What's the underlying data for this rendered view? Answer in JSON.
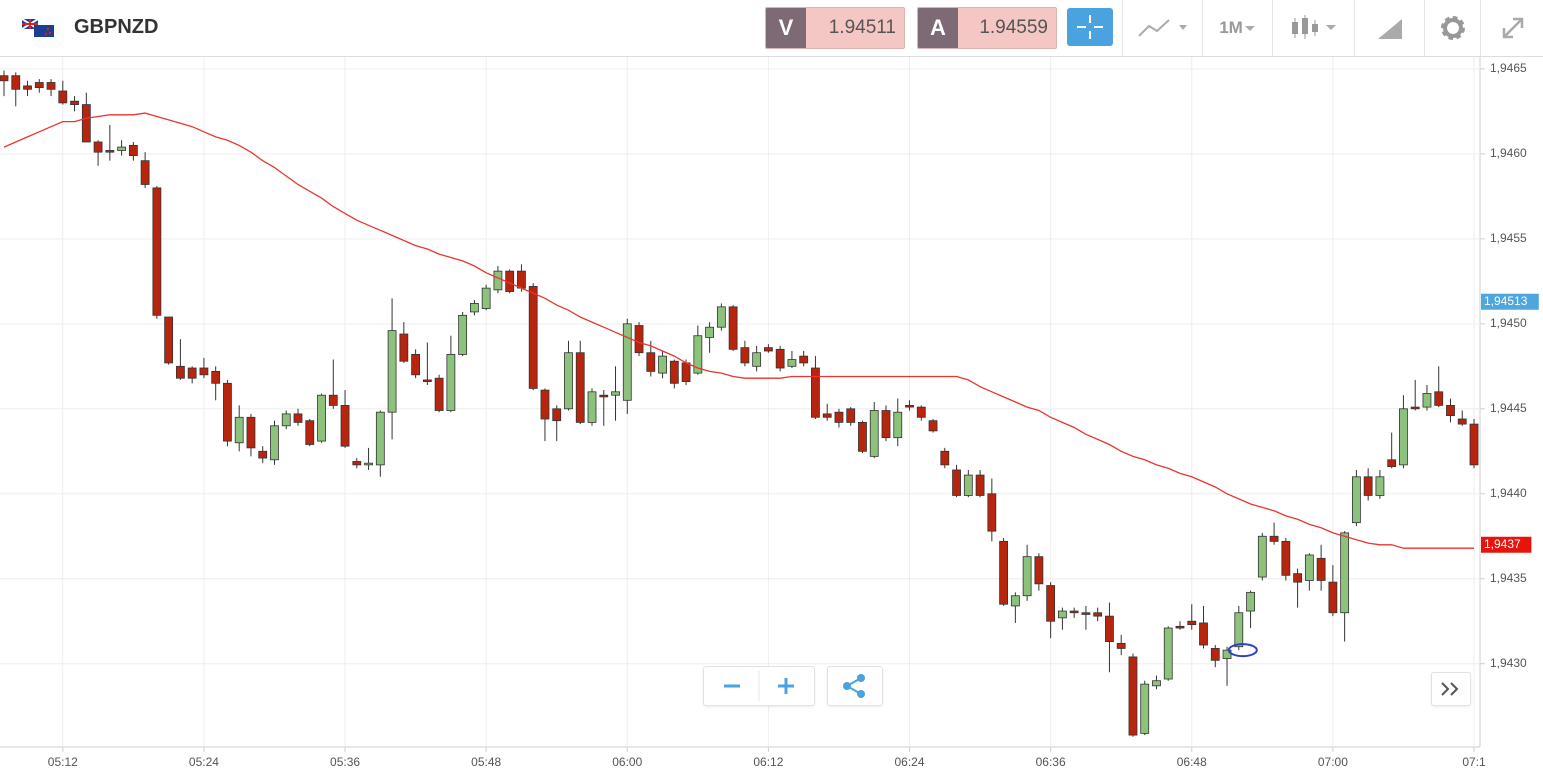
{
  "header": {
    "symbol": "GBPNZD",
    "sell_label": "V",
    "sell_price": 1.94511,
    "buy_label": "A",
    "buy_price": 1.94559,
    "timeframe": "1M"
  },
  "chart_data": {
    "type": "candlestick",
    "categories": [
      null,
      null,
      null,
      null,
      null,
      "05:12",
      null,
      null,
      null,
      null,
      null,
      null,
      null,
      null,
      null,
      null,
      null,
      "05:24",
      null,
      null,
      null,
      null,
      null,
      null,
      null,
      null,
      null,
      null,
      null,
      "05:36",
      null,
      null,
      null,
      null,
      null,
      null,
      null,
      null,
      null,
      null,
      null,
      "05:48",
      null,
      null,
      null,
      null,
      null,
      null,
      null,
      null,
      null,
      null,
      null,
      "06:00",
      null,
      null,
      null,
      null,
      null,
      null,
      null,
      null,
      null,
      null,
      null,
      "06:12",
      null,
      null,
      null,
      null,
      null,
      null,
      null,
      null,
      null,
      null,
      null,
      "06:24",
      null,
      null,
      null,
      null,
      null,
      null,
      null,
      null,
      null,
      null,
      null,
      "06:36",
      null,
      null,
      null,
      null,
      null,
      null,
      null,
      null,
      null,
      null,
      null,
      "06:48",
      null,
      null,
      null,
      null,
      null,
      null,
      null,
      null,
      null,
      null,
      null,
      "07:00",
      null,
      null,
      null,
      null,
      null,
      null,
      null,
      null,
      null,
      null,
      null,
      "07:1"
    ],
    "open": [
      1.94646,
      1.94646,
      1.9464,
      1.94642,
      1.94642,
      1.94637,
      1.94631,
      1.94629,
      1.94607,
      1.94602,
      1.94602,
      1.94605,
      1.94596,
      1.9458,
      1.94504,
      1.94475,
      1.94474,
      1.94474,
      1.94472,
      1.94465,
      1.9443,
      1.94445,
      1.94425,
      1.9442,
      1.9444,
      1.94447,
      1.94443,
      1.94431,
      1.94458,
      1.94452,
      1.94419,
      1.94417,
      1.94417,
      1.94448,
      1.94494,
      1.94482,
      1.94467,
      1.94468,
      1.94449,
      1.94482,
      1.94507,
      1.94509,
      1.9452,
      1.94531,
      1.94531,
      1.94522,
      1.94461,
      1.9445,
      1.9445,
      1.94483,
      1.94442,
      1.94458,
      1.94458,
      1.94455,
      1.94499,
      1.94483,
      1.94471,
      1.94478,
      1.94477,
      1.94471,
      1.94492,
      1.94498,
      1.9451,
      1.94486,
      1.94475,
      1.94486,
      1.94485,
      1.94475,
      1.94481,
      1.94474,
      1.94447,
      1.94448,
      1.9445,
      1.94442,
      1.94422,
      1.94449,
      1.94433,
      1.94452,
      1.94451,
      1.94443,
      1.94425,
      1.94414,
      1.94399,
      1.94411,
      1.944,
      1.94372,
      1.94334,
      1.9434,
      1.94363,
      1.94346,
      1.94327,
      1.94331,
      1.9433,
      1.9433,
      1.94328,
      1.94312,
      1.94304,
      1.94259,
      1.94287,
      1.94291,
      1.94322,
      1.94325,
      1.94324,
      1.94309,
      1.94303,
      1.9431,
      1.94331,
      1.94351,
      1.94375,
      1.94372,
      1.94353,
      1.94349,
      1.94362,
      1.94348,
      1.9433,
      1.94383,
      1.9441,
      1.94399,
      1.9442,
      1.94417,
      1.94451,
      1.94451,
      1.9446,
      1.94452,
      1.94444,
      1.94441
    ],
    "high": [
      1.94649,
      1.94648,
      1.94643,
      1.94644,
      1.94644,
      1.94643,
      1.94634,
      1.94636,
      1.94608,
      1.94617,
      1.94608,
      1.94607,
      1.94601,
      1.94581,
      1.94504,
      1.94491,
      1.94475,
      1.9448,
      1.94475,
      1.94467,
      1.94452,
      1.94447,
      1.94428,
      1.94443,
      1.94449,
      1.9445,
      1.94444,
      1.94459,
      1.94479,
      1.94461,
      1.94421,
      1.94427,
      1.94449,
      1.94515,
      1.94501,
      1.94485,
      1.94489,
      1.9447,
      1.94493,
      1.94507,
      1.94514,
      1.94523,
      1.94534,
      1.94532,
      1.94535,
      1.94524,
      1.94462,
      1.94452,
      1.9449,
      1.9449,
      1.94462,
      1.94461,
      1.94475,
      1.94503,
      1.94501,
      1.9449,
      1.94484,
      1.94479,
      1.94479,
      1.94499,
      1.94501,
      1.94512,
      1.94511,
      1.9449,
      1.94487,
      1.94488,
      1.94487,
      1.94484,
      1.94484,
      1.94481,
      1.94453,
      1.9445,
      1.94451,
      1.94443,
      1.94454,
      1.94452,
      1.94456,
      1.94455,
      1.94452,
      1.94444,
      1.94427,
      1.94417,
      1.94414,
      1.94414,
      1.94409,
      1.94374,
      1.94342,
      1.9437,
      1.94365,
      1.94348,
      1.94333,
      1.94333,
      1.94334,
      1.94333,
      1.94336,
      1.94317,
      1.94306,
      1.9429,
      1.94293,
      1.94322,
      1.94325,
      1.94335,
      1.94334,
      1.94311,
      1.9431,
      1.94334,
      1.94343,
      1.94377,
      1.94383,
      1.94374,
      1.94356,
      1.94365,
      1.9437,
      1.94358,
      1.94378,
      1.94414,
      1.94415,
      1.94414,
      1.94436,
      1.94458,
      1.94467,
      1.94464,
      1.94475,
      1.94456,
      1.94449,
      1.94444
    ],
    "low": [
      1.94634,
      1.94628,
      1.94634,
      1.94636,
      1.94634,
      1.94629,
      1.94625,
      1.94607,
      1.94593,
      1.94596,
      1.94599,
      1.94596,
      1.9458,
      1.94503,
      1.94476,
      1.94467,
      1.94465,
      1.94468,
      1.94455,
      1.94428,
      1.94425,
      1.94422,
      1.94418,
      1.94417,
      1.94438,
      1.9444,
      1.94428,
      1.9443,
      1.9445,
      1.94427,
      1.94415,
      1.94414,
      1.9441,
      1.94432,
      1.94477,
      1.94468,
      1.94464,
      1.94448,
      1.94448,
      1.94481,
      1.94505,
      1.94508,
      1.94518,
      1.94518,
      1.94519,
      1.94461,
      1.94431,
      1.94431,
      1.94449,
      1.94441,
      1.9444,
      1.9444,
      1.94443,
      1.94447,
      1.94481,
      1.94469,
      1.94468,
      1.94462,
      1.94464,
      1.9447,
      1.94483,
      1.94496,
      1.94484,
      1.94475,
      1.94472,
      1.94483,
      1.94472,
      1.94474,
      1.94475,
      1.94444,
      1.94443,
      1.94439,
      1.9444,
      1.94424,
      1.94421,
      1.94431,
      1.94428,
      1.94449,
      1.94443,
      1.94436,
      1.94415,
      1.94398,
      1.94398,
      1.94398,
      1.94372,
      1.94334,
      1.94324,
      1.94337,
      1.94343,
      1.94315,
      1.9432,
      1.94327,
      1.9432,
      1.94325,
      1.94295,
      1.94305,
      1.94257,
      1.94258,
      1.94285,
      1.9429,
      1.9432,
      1.9432,
      1.94309,
      1.94298,
      1.94287,
      1.94308,
      1.94321,
      1.94349,
      1.9437,
      1.94349,
      1.94333,
      1.94343,
      1.94343,
      1.94328,
      1.94313,
      1.94381,
      1.94396,
      1.94397,
      1.94415,
      1.94415,
      1.94449,
      1.94449,
      1.94451,
      1.94442,
      1.9444,
      1.94415
    ],
    "close": [
      1.94643,
      1.94638,
      1.94638,
      1.94639,
      1.94638,
      1.9463,
      1.94629,
      1.94607,
      1.94601,
      1.94601,
      1.94604,
      1.94599,
      1.94582,
      1.94505,
      1.94477,
      1.94468,
      1.94468,
      1.9447,
      1.94465,
      1.94431,
      1.94445,
      1.94427,
      1.94421,
      1.9444,
      1.94447,
      1.94442,
      1.94429,
      1.94458,
      1.94452,
      1.94428,
      1.94417,
      1.94418,
      1.94448,
      1.94496,
      1.94478,
      1.9447,
      1.94466,
      1.94449,
      1.94482,
      1.94505,
      1.94512,
      1.94521,
      1.94531,
      1.94519,
      1.94521,
      1.94462,
      1.94444,
      1.94443,
      1.94483,
      1.94442,
      1.9446,
      1.94457,
      1.9446,
      1.945,
      1.94483,
      1.94472,
      1.94481,
      1.94465,
      1.94466,
      1.94493,
      1.94498,
      1.9451,
      1.94485,
      1.94477,
      1.94483,
      1.94484,
      1.94474,
      1.94479,
      1.94477,
      1.94445,
      1.94445,
      1.94442,
      1.94442,
      1.94425,
      1.94449,
      1.94433,
      1.94448,
      1.94451,
      1.94445,
      1.94437,
      1.94417,
      1.94399,
      1.94411,
      1.94399,
      1.94378,
      1.94335,
      1.9434,
      1.94363,
      1.94347,
      1.94325,
      1.94331,
      1.9433,
      1.94329,
      1.94328,
      1.94313,
      1.94309,
      1.94258,
      1.94288,
      1.9429,
      1.94321,
      1.94321,
      1.94323,
      1.94311,
      1.94302,
      1.94308,
      1.9433,
      1.94342,
      1.94375,
      1.94372,
      1.94352,
      1.94348,
      1.94364,
      1.94349,
      1.9433,
      1.94377,
      1.9441,
      1.94399,
      1.9441,
      1.94416,
      1.9445,
      1.9445,
      1.94459,
      1.94452,
      1.94446,
      1.94441,
      1.94417
    ],
    "up_color": "#8dc27c",
    "down_color": "#b8250f",
    "ma": {
      "color": "#e8362e",
      "values": [
        1.94604,
        1.94607,
        1.9461,
        1.94613,
        1.94616,
        1.94619,
        1.94619,
        1.94621,
        1.94622,
        1.94623,
        1.94623,
        1.94623,
        1.94624,
        1.94622,
        1.9462,
        1.94618,
        1.94616,
        1.94613,
        1.9461,
        1.94608,
        1.94605,
        1.94601,
        1.94596,
        1.94592,
        1.94587,
        1.94582,
        1.94578,
        1.94574,
        1.94569,
        1.94565,
        1.94561,
        1.94558,
        1.94555,
        1.94552,
        1.94549,
        1.94546,
        1.94544,
        1.94541,
        1.94539,
        1.94537,
        1.94534,
        1.9453,
        1.94527,
        1.94524,
        1.94521,
        1.94518,
        1.94515,
        1.94511,
        1.94508,
        1.94504,
        1.94501,
        1.94498,
        1.94495,
        1.94492,
        1.94489,
        1.94487,
        1.94484,
        1.94481,
        1.94477,
        1.94474,
        1.94472,
        1.94471,
        1.94469,
        1.94468,
        1.94468,
        1.94468,
        1.94468,
        1.94469,
        1.94469,
        1.94469,
        1.94469,
        1.94469,
        1.94469,
        1.94469,
        1.94469,
        1.94469,
        1.94469,
        1.94469,
        1.94469,
        1.94469,
        1.94469,
        1.94469,
        1.94467,
        1.94463,
        1.9446,
        1.94457,
        1.94454,
        1.94451,
        1.94449,
        1.94445,
        1.94442,
        1.94439,
        1.94435,
        1.94432,
        1.94429,
        1.94425,
        1.94422,
        1.9442,
        1.94417,
        1.94415,
        1.94412,
        1.9441,
        1.94407,
        1.94404,
        1.944,
        1.94397,
        1.94394,
        1.94392,
        1.9439,
        1.94387,
        1.94385,
        1.94382,
        1.9438,
        1.94377,
        1.94375,
        1.94373,
        1.94371,
        1.9437,
        1.9437,
        1.94368,
        1.94368,
        1.94368,
        1.94368,
        1.94368,
        1.94368,
        1.94368
      ]
    },
    "ylim": [
      1.94251,
      1.94657
    ],
    "yticks": [
      {
        "value": 1.943,
        "label": "1,9430"
      },
      {
        "value": 1.9435,
        "label": "1,9435"
      },
      {
        "value": 1.944,
        "label": "1,9440"
      },
      {
        "value": 1.9445,
        "label": "1,9445"
      },
      {
        "value": 1.945,
        "label": "1,9450"
      },
      {
        "value": 1.9455,
        "label": "1,9455"
      },
      {
        "value": 1.946,
        "label": "1,9460"
      },
      {
        "value": 1.9465,
        "label": "1,9465"
      }
    ],
    "grid": true,
    "price_tags": [
      {
        "value": 1.94513,
        "label": "1,94513",
        "color": "#4ea6dc"
      },
      {
        "value": 1.9437,
        "label": "1,9437",
        "color": "#e8140c"
      }
    ]
  }
}
